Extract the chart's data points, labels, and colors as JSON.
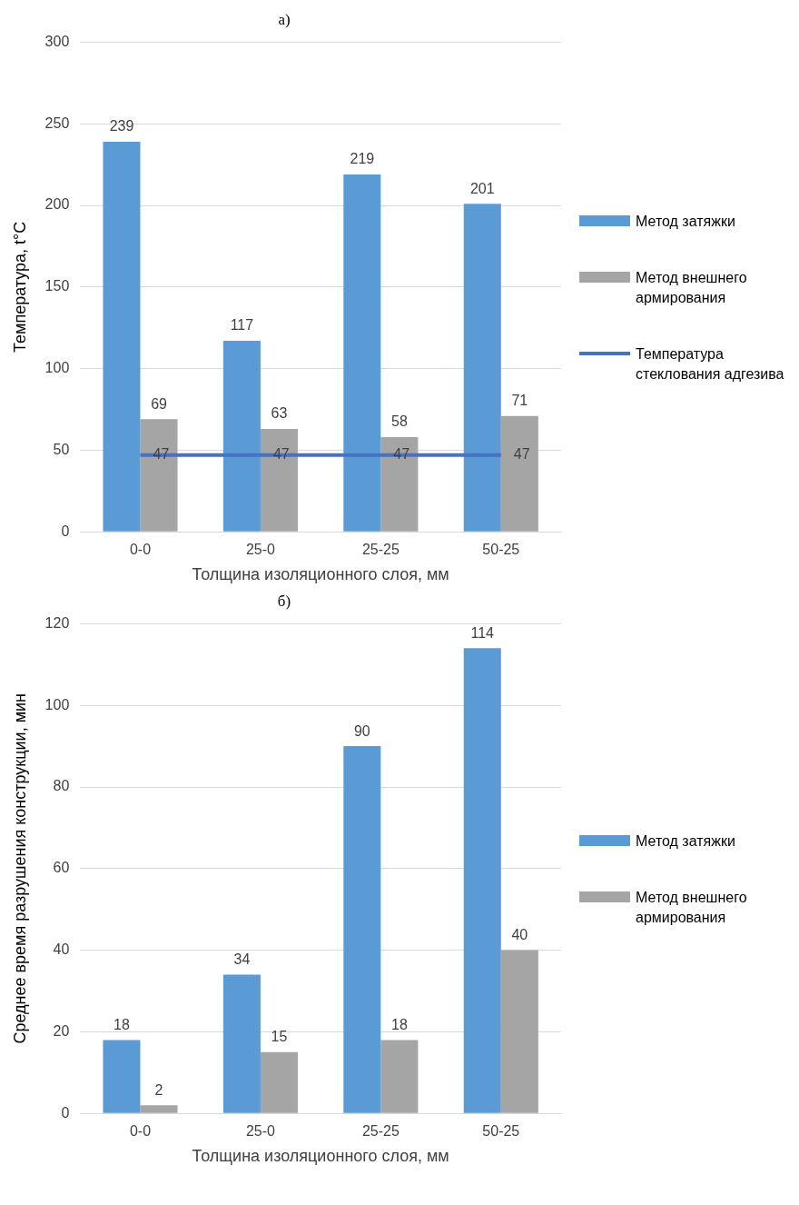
{
  "chart_data": [
    {
      "type": "bar",
      "title": "а)",
      "xlabel": "Толщина изоляционного слоя, мм",
      "ylabel": "Температура, t°C",
      "categories": [
        "0-0",
        "25-0",
        "25-25",
        "50-25"
      ],
      "series": [
        {
          "name": "Метод затяжки",
          "color": "#5b9bd5",
          "values": [
            239,
            117,
            219,
            201
          ]
        },
        {
          "name": "Метод внешнего армирования",
          "color": "#a5a5a5",
          "values": [
            69,
            63,
            58,
            71
          ]
        },
        {
          "name": "Температура стеклования адгезива",
          "color": "#4472c4",
          "type": "line",
          "values": [
            47,
            47,
            47,
            47
          ]
        }
      ],
      "ylim": [
        0,
        300
      ],
      "yticks": [
        0,
        50,
        100,
        150,
        200,
        250,
        300
      ],
      "grid": "y",
      "legend": "right",
      "marker": "none",
      "data_labels": true
    },
    {
      "type": "bar",
      "title": "б)",
      "xlabel": "Толщина изоляционного слоя, мм",
      "ylabel": "Среднее время разрушения конструкции, мин",
      "categories": [
        "0-0",
        "25-0",
        "25-25",
        "50-25"
      ],
      "series": [
        {
          "name": "Метод затяжки",
          "color": "#5b9bd5",
          "values": [
            18,
            34,
            90,
            114
          ]
        },
        {
          "name": "Метод внешнего армирования",
          "color": "#a5a5a5",
          "values": [
            2,
            15,
            18,
            40
          ]
        }
      ],
      "ylim": [
        0,
        120
      ],
      "yticks": [
        0,
        20,
        40,
        60,
        80,
        100,
        120
      ],
      "grid": "y",
      "legend": "right",
      "data_labels": true
    }
  ]
}
